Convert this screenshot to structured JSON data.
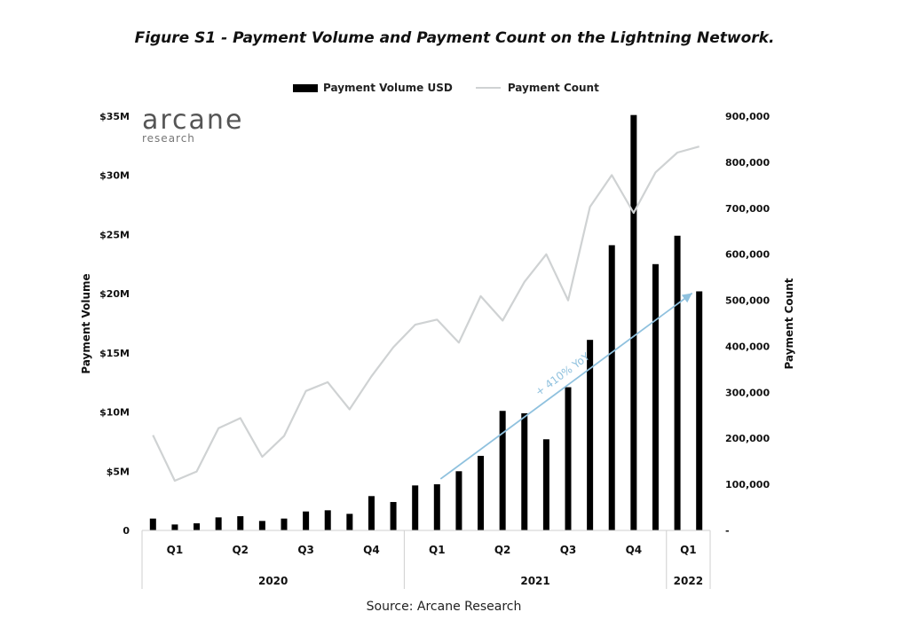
{
  "figure_title": "Figure S1 - Payment Volume and Payment Count on the Lightning Network.",
  "logo": {
    "name": "arcane",
    "sub": "research"
  },
  "source": "Source: Arcane Research",
  "chart_data": {
    "type": "bar",
    "title": "Figure S1 - Payment Volume and Payment Count on the Lightning Network.",
    "legend_position": "top-center",
    "grid": false,
    "ylabel": "Payment Volume",
    "y2label": "Payment Count",
    "ylim": [
      0,
      35
    ],
    "y2lim": [
      0,
      900000
    ],
    "y_ticks": [
      "0",
      "$5M",
      "$10M",
      "$15M",
      "$20M",
      "$25M",
      "$30M",
      "$35M"
    ],
    "y2_ticks": [
      "-",
      "100,000",
      "200,000",
      "300,000",
      "400,000",
      "500,000",
      "600,000",
      "700,000",
      "800,000",
      "900,000"
    ],
    "quarter_labels": [
      "Q1",
      "Q2",
      "Q3",
      "Q4",
      "Q1",
      "Q2",
      "Q3",
      "Q4",
      "Q1"
    ],
    "year_labels": [
      "2020",
      "2021",
      "2022"
    ],
    "annotation": "+ 410% YoY",
    "series": [
      {
        "name": "Payment Volume USD",
        "kind": "bar",
        "color": "#000000",
        "unit": "USD millions",
        "values": [
          1.0,
          0.5,
          0.6,
          1.1,
          1.2,
          0.8,
          1.0,
          1.6,
          1.7,
          1.4,
          2.9,
          2.4,
          3.8,
          3.9,
          5.0,
          6.3,
          10.1,
          9.9,
          7.7,
          12.1,
          16.1,
          24.1,
          35.1,
          22.5,
          24.9,
          20.2
        ]
      },
      {
        "name": "Payment Count",
        "kind": "line",
        "color": "#cfd2d3",
        "values": [
          207000,
          108000,
          128000,
          222000,
          244000,
          160000,
          205000,
          303000,
          322000,
          263000,
          335000,
          398000,
          447000,
          458000,
          408000,
          509000,
          456000,
          540000,
          600000,
          500000,
          703000,
          772000,
          690000,
          778000,
          821000,
          834000
        ]
      }
    ]
  }
}
